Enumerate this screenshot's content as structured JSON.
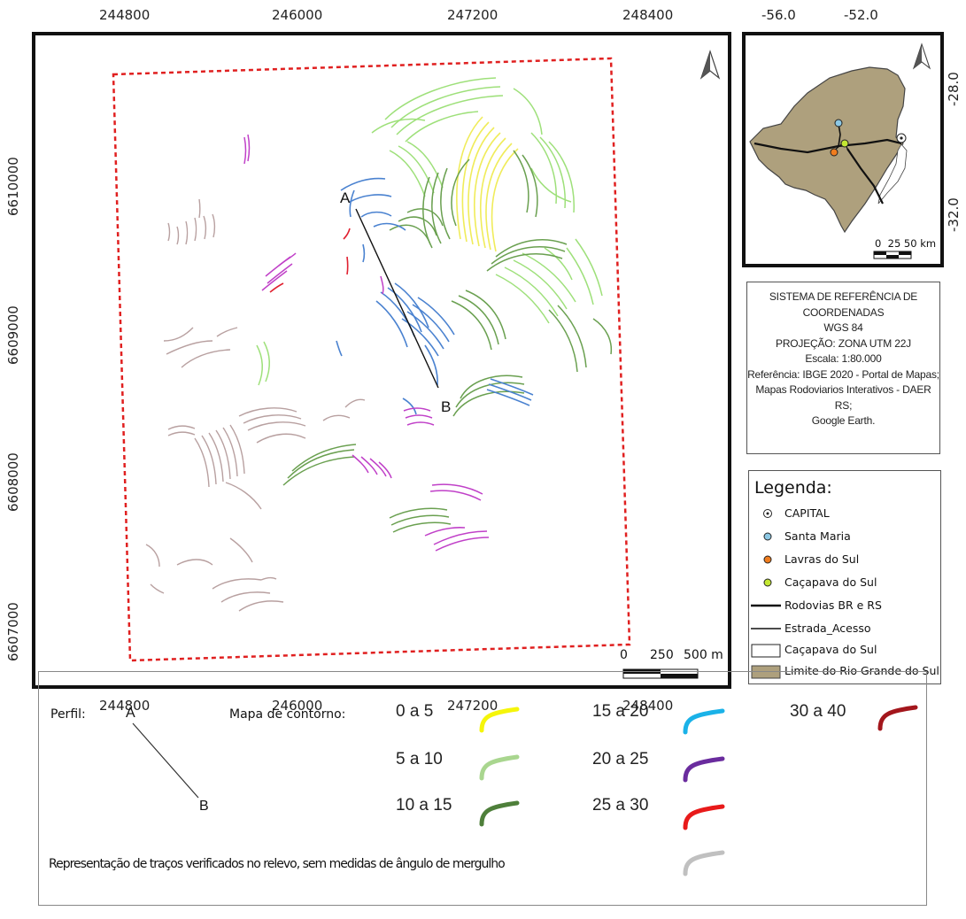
{
  "main_map": {
    "x_ticks": [
      "244800",
      "246000",
      "247200",
      "248400"
    ],
    "y_ticks": [
      "6610000",
      "6609000",
      "6608000",
      "6607000"
    ],
    "profile_start": "A",
    "profile_end": "B",
    "scale_labels": [
      "0",
      "250",
      "500 m"
    ],
    "north_arrow": "north-arrow-icon"
  },
  "inset_map": {
    "x_ticks": [
      "-56.0",
      "-52.0"
    ],
    "y_ticks": [
      "-28.0",
      "-32.0"
    ],
    "scale_label": "0  25 50 km",
    "north_arrow": "north-arrow-icon",
    "state_fill": "#aea07d"
  },
  "reference": {
    "lines": [
      "SISTEMA DE REFERÊNCIA DE",
      "COORDENADAS",
      "WGS 84",
      "PROJEÇÃO: ZONA UTM 22J",
      "Escala: 1:80.000",
      "Referência: IBGE 2020 - Portal de Mapas;",
      "Mapas Rodoviarios Interativos - DAER",
      "RS;",
      "Google Earth."
    ]
  },
  "legend": {
    "title": "Legenda:",
    "items": [
      {
        "label": "CAPITAL",
        "symbol": "capital-icon"
      },
      {
        "label": "Santa Maria",
        "color": "#8cc8e4"
      },
      {
        "label": "Lavras do Sul",
        "color": "#f07d1e"
      },
      {
        "label": "Caçapava do Sul",
        "color": "#c4e832"
      },
      {
        "label": "Rodovias BR e RS",
        "symbol": "thick-line"
      },
      {
        "label": "Estrada_Acesso",
        "symbol": "thin-line"
      },
      {
        "label": "Caçapava do Sul",
        "symbol": "outline-box"
      },
      {
        "label": "Limite do Rio Grande do Sul",
        "symbol": "fill-box",
        "color": "#aea07d"
      }
    ]
  },
  "bottom_legend": {
    "perfil_label": "Perfil:",
    "profile_a": "A",
    "profile_b": "B",
    "contour_label": "Mapa de contorno:",
    "ranges": [
      {
        "label": "0 a 5",
        "color": "#f5f50a"
      },
      {
        "label": "5 a 10",
        "color": "#a9d68f"
      },
      {
        "label": "10 a 15",
        "color": "#4e7f3a"
      },
      {
        "label": "15 a 20",
        "color": "#1ab2e8"
      },
      {
        "label": "20 a 25",
        "color": "#6a2c9e"
      },
      {
        "label": "25 a 30",
        "color": "#e81a1a"
      },
      {
        "label": "30 a 40",
        "color": "#a3161c"
      }
    ],
    "unmeasured_label": "Representação de traços verificados no relevo, sem medidas de ângulo de mergulho",
    "unmeasured_color": "#c0c0c0"
  },
  "trace_colors": {
    "yellow": "#f0ec5a",
    "light_green": "#9ee07a",
    "dark_green": "#6aa050",
    "blue": "#4a82d0",
    "magenta": "#c040c8",
    "red": "#e02030",
    "brown": "#b8a0a0"
  }
}
